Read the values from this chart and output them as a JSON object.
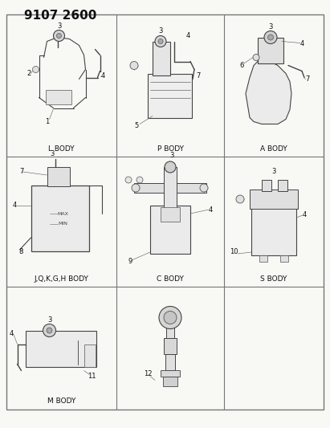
{
  "title": "9107 2600",
  "bg": "#f5f5f0",
  "fg": "#222222",
  "grid_color": "#888888",
  "title_fs": 11,
  "label_fs": 6.5,
  "num_fs": 5.5,
  "figsize": [
    4.11,
    5.33
  ],
  "dpi": 100,
  "cells": [
    {
      "row": 0,
      "col": 0,
      "label": "L BODY",
      "nums": [
        "3",
        "4",
        "2",
        "1"
      ]
    },
    {
      "row": 0,
      "col": 1,
      "label": "P BODY",
      "nums": [
        "3",
        "4",
        "7",
        "5"
      ]
    },
    {
      "row": 0,
      "col": 2,
      "label": "A BODY",
      "nums": [
        "3",
        "4",
        "6",
        "7"
      ]
    },
    {
      "row": 1,
      "col": 0,
      "label": "J,Q,K,G,H BODY",
      "nums": [
        "7",
        "3",
        "4",
        "8"
      ]
    },
    {
      "row": 1,
      "col": 1,
      "label": "C BODY",
      "nums": [
        "3",
        "4",
        "9"
      ]
    },
    {
      "row": 1,
      "col": 2,
      "label": "S BODY",
      "nums": [
        "3",
        "4",
        "10"
      ]
    },
    {
      "row": 2,
      "col": 0,
      "label": "M BODY",
      "nums": [
        "4",
        "3",
        "11"
      ]
    },
    {
      "row": 2,
      "col": 1,
      "label": "",
      "nums": [
        "12"
      ]
    },
    {
      "row": 2,
      "col": 2,
      "label": "",
      "nums": []
    }
  ]
}
